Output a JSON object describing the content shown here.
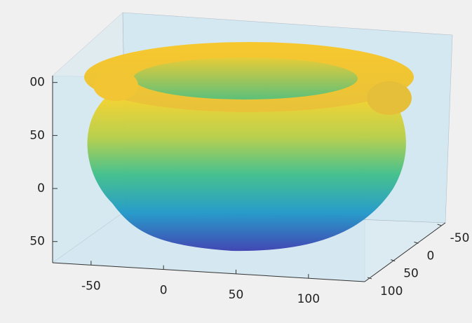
{
  "chart_data": {
    "type": "pointcloud",
    "xlim": [
      -78,
      133
    ],
    "xticks": [
      -50,
      0,
      50,
      100
    ],
    "ylim": [
      -58,
      112
    ],
    "yticks": [
      -50,
      0,
      50,
      100
    ],
    "zlim": [
      -70,
      115
    ],
    "zticks": [
      {
        "value": 100,
        "label": "00"
      },
      50,
      0,
      {
        "value": -50,
        "label": "50"
      }
    ],
    "box_color": "#c9e6f2"
  }
}
